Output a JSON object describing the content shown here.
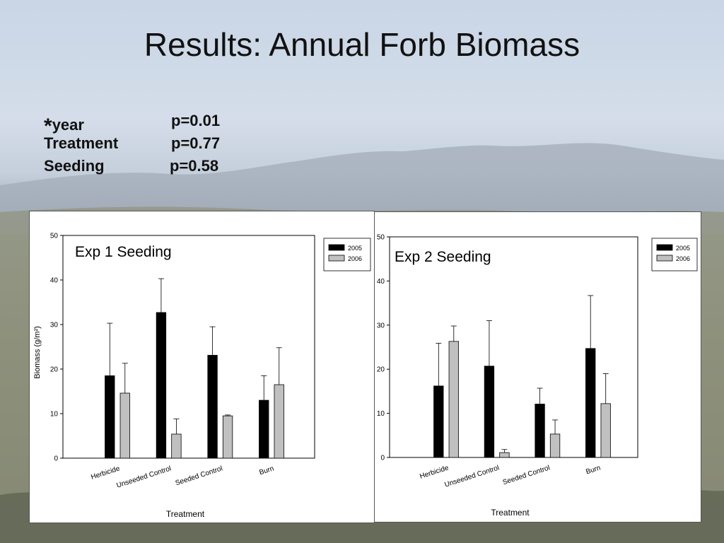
{
  "slide": {
    "title": "Results: Annual Forb Biomass",
    "stats": [
      {
        "star": "*",
        "label": "year",
        "value": "p=0.01"
      },
      {
        "star": "",
        "label": "Treatment",
        "value": "p=0.77"
      },
      {
        "star": "",
        "label": "Seeding",
        "value": "p=0.58"
      }
    ]
  },
  "colors": {
    "series_2005": "#000000",
    "series_2006": "#c0c0c0",
    "background_sky": "#c9d6e6",
    "background_mountains": "#9aa3ad",
    "background_ground": "#7f826f"
  },
  "chart_data": [
    {
      "type": "bar",
      "title": "Exp 1 Seeding",
      "categories": [
        "Herbicide",
        "Unseeded Control",
        "Seeded Control",
        "Burn"
      ],
      "series": [
        {
          "name": "2005",
          "values": [
            18.5,
            32.7,
            23.1,
            13.0
          ],
          "err": [
            11.8,
            7.6,
            6.4,
            5.5
          ]
        },
        {
          "name": "2006",
          "values": [
            14.6,
            5.4,
            9.5,
            16.5
          ],
          "err": [
            6.7,
            3.4,
            0.2,
            8.3
          ]
        }
      ],
      "xlabel": "Treatment",
      "ylabel": "Biomass (g/m²)",
      "ylim": [
        0,
        50
      ],
      "yticks": [
        "0",
        "10",
        "20",
        "30",
        "40",
        "50"
      ],
      "legend": "top-right",
      "grid": false
    },
    {
      "type": "bar",
      "title": "Exp 2 Seeding",
      "categories": [
        "Herbicide",
        "Unseeded Control",
        "Seeded Control",
        "Burn"
      ],
      "series": [
        {
          "name": "2005",
          "values": [
            16.2,
            20.7,
            12.1,
            24.7
          ],
          "err": [
            9.7,
            10.3,
            3.6,
            12.0
          ]
        },
        {
          "name": "2006",
          "values": [
            26.3,
            1.1,
            5.3,
            12.2
          ],
          "err": [
            3.5,
            0.7,
            3.2,
            6.8
          ]
        }
      ],
      "xlabel": "Treatment",
      "ylabel": "",
      "ylim": [
        0,
        50
      ],
      "yticks": [
        "0",
        "10",
        "20",
        "30",
        "40",
        "50"
      ],
      "legend": "top-right",
      "grid": false
    }
  ]
}
